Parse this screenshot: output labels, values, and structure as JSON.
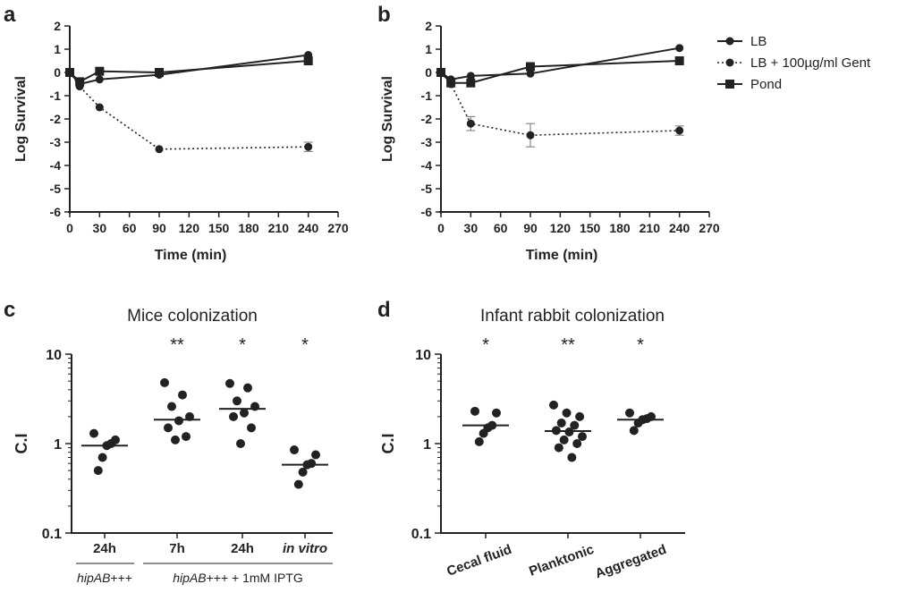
{
  "figure": {
    "panel_labels": [
      "a",
      "b",
      "c",
      "d"
    ],
    "legend": [
      {
        "label": "LB",
        "marker": "circle",
        "dash": "solid"
      },
      {
        "label": "LB + 100µg/ml Gent",
        "marker": "circle",
        "dash": "dotted"
      },
      {
        "label": "Pond",
        "marker": "square",
        "dash": "solid"
      }
    ],
    "group_labels": {
      "c_left": "hipAB+++",
      "c_right_italic": "hipAB",
      "c_right_rest": "+++ + 1mM IPTG"
    },
    "colors": {
      "ink": "#222222",
      "error_bar": "#888888"
    }
  },
  "chart_data": [
    {
      "panel": "a",
      "type": "line",
      "xlabel": "Time (min)",
      "ylabel": "Log Survival",
      "xlim": [
        0,
        270
      ],
      "ylim": [
        -6,
        2
      ],
      "xticks": [
        "0",
        "30",
        "60",
        "90",
        "120",
        "150",
        "180",
        "210",
        "240",
        "270"
      ],
      "yticks": [
        "2",
        "1",
        "0",
        "-1",
        "-2",
        "-3",
        "-4",
        "-5",
        "-6"
      ],
      "series": [
        {
          "name": "LB",
          "x": [
            0,
            10,
            30,
            90,
            240
          ],
          "y": [
            0,
            -0.5,
            -0.3,
            -0.1,
            0.75
          ]
        },
        {
          "name": "LB + 100µg/ml Gent",
          "x": [
            0,
            10,
            30,
            90,
            240
          ],
          "y": [
            0,
            -0.6,
            -1.5,
            -3.3,
            -3.2
          ],
          "yerr": [
            0,
            0,
            0,
            0,
            0.2
          ]
        },
        {
          "name": "Pond",
          "x": [
            0,
            10,
            30,
            90,
            240
          ],
          "y": [
            0,
            -0.4,
            0.05,
            0,
            0.5
          ]
        }
      ]
    },
    {
      "panel": "b",
      "type": "line",
      "xlabel": "Time (min)",
      "ylabel": "Log Survival",
      "xlim": [
        0,
        270
      ],
      "ylim": [
        -6,
        2
      ],
      "xticks": [
        "0",
        "30",
        "60",
        "90",
        "120",
        "150",
        "180",
        "210",
        "240",
        "270"
      ],
      "yticks": [
        "2",
        "1",
        "0",
        "-1",
        "-2",
        "-3",
        "-4",
        "-5",
        "-6"
      ],
      "series": [
        {
          "name": "LB",
          "x": [
            0,
            10,
            30,
            90,
            240
          ],
          "y": [
            0,
            -0.3,
            -0.15,
            -0.05,
            1.05
          ]
        },
        {
          "name": "LB + 100µg/ml Gent",
          "x": [
            0,
            10,
            30,
            90,
            240
          ],
          "y": [
            0,
            -0.5,
            -2.2,
            -2.7,
            -2.5
          ],
          "yerr": [
            0,
            0,
            0.3,
            0.5,
            0.2
          ]
        },
        {
          "name": "Pond",
          "x": [
            0,
            10,
            30,
            90,
            240
          ],
          "y": [
            0,
            -0.45,
            -0.45,
            0.25,
            0.5
          ]
        }
      ]
    },
    {
      "panel": "c",
      "type": "scatter",
      "title": "Mice colonization",
      "ylabel": "C.I",
      "yscale": "log",
      "ylim": [
        0.1,
        10
      ],
      "yticks": [
        "10",
        "1",
        "0.1"
      ],
      "categories": [
        "24h",
        "7h",
        "24h",
        "in vitro"
      ],
      "categories_italic": [
        false,
        false,
        false,
        true
      ],
      "significance": [
        "",
        "**",
        "*",
        "*"
      ],
      "points": [
        [
          1.3,
          1.1,
          1.0,
          0.95,
          0.7,
          0.5
        ],
        [
          4.8,
          3.5,
          2.6,
          2.0,
          1.8,
          1.5,
          1.2,
          1.1
        ],
        [
          4.7,
          4.2,
          3.0,
          2.6,
          2.2,
          2.0,
          1.5,
          1.0
        ],
        [
          0.85,
          0.75,
          0.6,
          0.58,
          0.48,
          0.35
        ]
      ],
      "medians": [
        0.95,
        1.85,
        2.45,
        0.58
      ]
    },
    {
      "panel": "d",
      "type": "scatter",
      "title": "Infant rabbit colonization",
      "ylabel": "C.I",
      "yscale": "log",
      "ylim": [
        0.1,
        10
      ],
      "yticks": [
        "10",
        "1",
        "0.1"
      ],
      "categories": [
        "Cecal fluid",
        "Planktonic",
        "Aggregated"
      ],
      "significance": [
        "*",
        "**",
        "*"
      ],
      "points": [
        [
          2.3,
          2.2,
          1.6,
          1.5,
          1.3,
          1.05
        ],
        [
          2.7,
          2.2,
          2.0,
          1.7,
          1.6,
          1.4,
          1.35,
          1.2,
          1.1,
          1.0,
          0.9,
          0.7
        ],
        [
          2.2,
          2.0,
          1.9,
          1.85,
          1.7,
          1.4
        ]
      ],
      "medians": [
        1.6,
        1.38,
        1.85
      ]
    }
  ]
}
